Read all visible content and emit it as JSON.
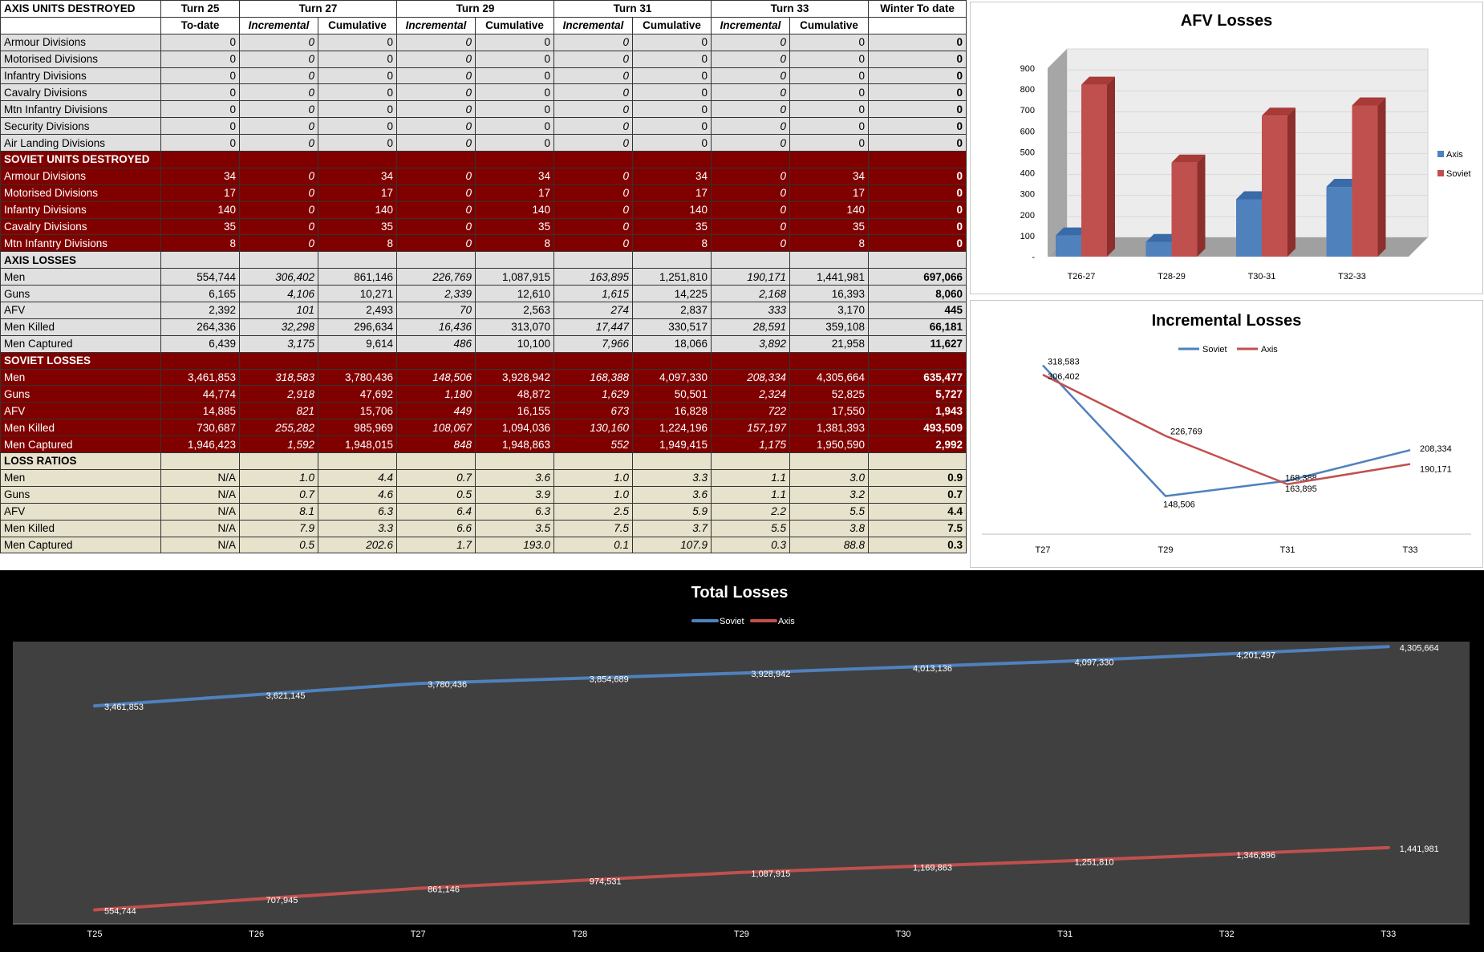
{
  "table": {
    "header_row1": [
      "AXIS UNITS DESTROYED",
      "Turn 25",
      "Turn 27",
      "Turn 29",
      "Turn 31",
      "Turn 33",
      "Winter To date"
    ],
    "header_row2": [
      "",
      "To-date",
      "Incremental",
      "Cumulative",
      "Incremental",
      "Cumulative",
      "Incremental",
      "Cumulative",
      "Incremental",
      "Cumulative",
      ""
    ],
    "axis_units": [
      [
        "Armour Divisions",
        "0",
        "0",
        "0",
        "0",
        "0",
        "0",
        "0",
        "0",
        "0",
        "0"
      ],
      [
        "Motorised Divisions",
        "0",
        "0",
        "0",
        "0",
        "0",
        "0",
        "0",
        "0",
        "0",
        "0"
      ],
      [
        "Infantry Divisions",
        "0",
        "0",
        "0",
        "0",
        "0",
        "0",
        "0",
        "0",
        "0",
        "0"
      ],
      [
        "Cavalry Divisions",
        "0",
        "0",
        "0",
        "0",
        "0",
        "0",
        "0",
        "0",
        "0",
        "0"
      ],
      [
        "Mtn Infantry Divisions",
        "0",
        "0",
        "0",
        "0",
        "0",
        "0",
        "0",
        "0",
        "0",
        "0"
      ],
      [
        "Security Divisions",
        "0",
        "0",
        "0",
        "0",
        "0",
        "0",
        "0",
        "0",
        "0",
        "0"
      ],
      [
        "Air Landing Divisions",
        "0",
        "0",
        "0",
        "0",
        "0",
        "0",
        "0",
        "0",
        "0",
        "0"
      ]
    ],
    "soviet_units_title": "SOVIET UNITS DESTROYED",
    "soviet_units": [
      [
        "Armour Divisions",
        "34",
        "0",
        "34",
        "0",
        "34",
        "0",
        "34",
        "0",
        "34",
        "0"
      ],
      [
        "Motorised Divisions",
        "17",
        "0",
        "17",
        "0",
        "17",
        "0",
        "17",
        "0",
        "17",
        "0"
      ],
      [
        "Infantry Divisions",
        "140",
        "0",
        "140",
        "0",
        "140",
        "0",
        "140",
        "0",
        "140",
        "0"
      ],
      [
        "Cavalry Divisions",
        "35",
        "0",
        "35",
        "0",
        "35",
        "0",
        "35",
        "0",
        "35",
        "0"
      ],
      [
        "Mtn Infantry Divisions",
        "8",
        "0",
        "8",
        "0",
        "8",
        "0",
        "8",
        "0",
        "8",
        "0"
      ]
    ],
    "axis_losses_title": "AXIS LOSSES",
    "axis_losses": [
      [
        "Men",
        "554,744",
        "306,402",
        "861,146",
        "226,769",
        "1,087,915",
        "163,895",
        "1,251,810",
        "190,171",
        "1,441,981",
        "697,066"
      ],
      [
        "Guns",
        "6,165",
        "4,106",
        "10,271",
        "2,339",
        "12,610",
        "1,615",
        "14,225",
        "2,168",
        "16,393",
        "8,060"
      ],
      [
        "AFV",
        "2,392",
        "101",
        "2,493",
        "70",
        "2,563",
        "274",
        "2,837",
        "333",
        "3,170",
        "445"
      ],
      [
        "Men Killed",
        "264,336",
        "32,298",
        "296,634",
        "16,436",
        "313,070",
        "17,447",
        "330,517",
        "28,591",
        "359,108",
        "66,181"
      ],
      [
        "Men Captured",
        "6,439",
        "3,175",
        "9,614",
        "486",
        "10,100",
        "7,966",
        "18,066",
        "3,892",
        "21,958",
        "11,627"
      ]
    ],
    "soviet_losses_title": "SOVIET LOSSES",
    "soviet_losses": [
      [
        "Men",
        "3,461,853",
        "318,583",
        "3,780,436",
        "148,506",
        "3,928,942",
        "168,388",
        "4,097,330",
        "208,334",
        "4,305,664",
        "635,477"
      ],
      [
        "Guns",
        "44,774",
        "2,918",
        "47,692",
        "1,180",
        "48,872",
        "1,629",
        "50,501",
        "2,324",
        "52,825",
        "5,727"
      ],
      [
        "AFV",
        "14,885",
        "821",
        "15,706",
        "449",
        "16,155",
        "673",
        "16,828",
        "722",
        "17,550",
        "1,943"
      ],
      [
        "Men Killed",
        "730,687",
        "255,282",
        "985,969",
        "108,067",
        "1,094,036",
        "130,160",
        "1,224,196",
        "157,197",
        "1,381,393",
        "493,509"
      ],
      [
        "Men Captured",
        "1,946,423",
        "1,592",
        "1,948,015",
        "848",
        "1,948,863",
        "552",
        "1,949,415",
        "1,175",
        "1,950,590",
        "2,992"
      ]
    ],
    "loss_ratios_title": "LOSS RATIOS",
    "loss_ratios": [
      [
        "Men",
        "N/A",
        "1.0",
        "4.4",
        "0.7",
        "3.6",
        "1.0",
        "3.3",
        "1.1",
        "3.0",
        "0.9"
      ],
      [
        "Guns",
        "N/A",
        "0.7",
        "4.6",
        "0.5",
        "3.9",
        "1.0",
        "3.6",
        "1.1",
        "3.2",
        "0.7"
      ],
      [
        "AFV",
        "N/A",
        "8.1",
        "6.3",
        "6.4",
        "6.3",
        "2.5",
        "5.9",
        "2.2",
        "5.5",
        "4.4"
      ],
      [
        "Men Killed",
        "N/A",
        "7.9",
        "3.3",
        "6.6",
        "3.5",
        "7.5",
        "3.7",
        "5.5",
        "3.8",
        "7.5"
      ],
      [
        "Men Captured",
        "N/A",
        "0.5",
        "202.6",
        "1.7",
        "193.0",
        "0.1",
        "107.9",
        "0.3",
        "88.8",
        "0.3"
      ]
    ]
  },
  "chart_data": [
    {
      "type": "bar",
      "title": "AFV Losses",
      "categories": [
        "T26-27",
        "T28-29",
        "T30-31",
        "T32-33"
      ],
      "series": [
        {
          "name": "Axis",
          "values": [
            101,
            70,
            274,
            333
          ],
          "color": "#4f81bd"
        },
        {
          "name": "Soviet",
          "values": [
            821,
            449,
            673,
            722
          ],
          "color": "#c0504d"
        }
      ],
      "ylim": [
        0,
        900
      ],
      "yticks": [
        "-",
        "100",
        "200",
        "300",
        "400",
        "500",
        "600",
        "700",
        "800",
        "900"
      ],
      "legend": "right",
      "style": "3d"
    },
    {
      "type": "line",
      "title": "Incremental Losses",
      "categories": [
        "T27",
        "T29",
        "T31",
        "T33"
      ],
      "series": [
        {
          "name": "Soviet",
          "values": [
            318583,
            148506,
            168388,
            208334
          ],
          "labels": [
            "318,583",
            "148,506",
            "168,388",
            "208,334"
          ],
          "color": "#4f81bd"
        },
        {
          "name": "Axis",
          "values": [
            306402,
            226769,
            163895,
            190171
          ],
          "labels": [
            "306,402",
            "226,769",
            "163,895",
            "190,171"
          ],
          "color": "#c0504d"
        }
      ],
      "legend": "top"
    },
    {
      "type": "line",
      "title": "Total Losses",
      "categories": [
        "T25",
        "T26",
        "T27",
        "T28",
        "T29",
        "T30",
        "T31",
        "T32",
        "T33"
      ],
      "series": [
        {
          "name": "Soviet",
          "values": [
            3461853,
            3621145,
            3780436,
            3854689,
            3928942,
            4013136,
            4097330,
            4201497,
            4305664
          ],
          "labels": [
            "3,461,853",
            "3,621,145",
            "3,780,436",
            "3,854,689",
            "3,928,942",
            "4,013,136",
            "4,097,330",
            "4,201,497",
            "4,305,664"
          ],
          "color": "#4f81bd"
        },
        {
          "name": "Axis",
          "values": [
            554744,
            707945,
            861146,
            974531,
            1087915,
            1169863,
            1251810,
            1346896,
            1441981
          ],
          "labels": [
            "554,744",
            "707,945",
            "861,146",
            "974,531",
            "1,087,915",
            "1,169,863",
            "1,251,810",
            "1,346,896",
            "1,441,981"
          ],
          "color": "#c0504d"
        }
      ],
      "legend": "top",
      "background": "#000000",
      "plot_background": "#404040"
    }
  ]
}
